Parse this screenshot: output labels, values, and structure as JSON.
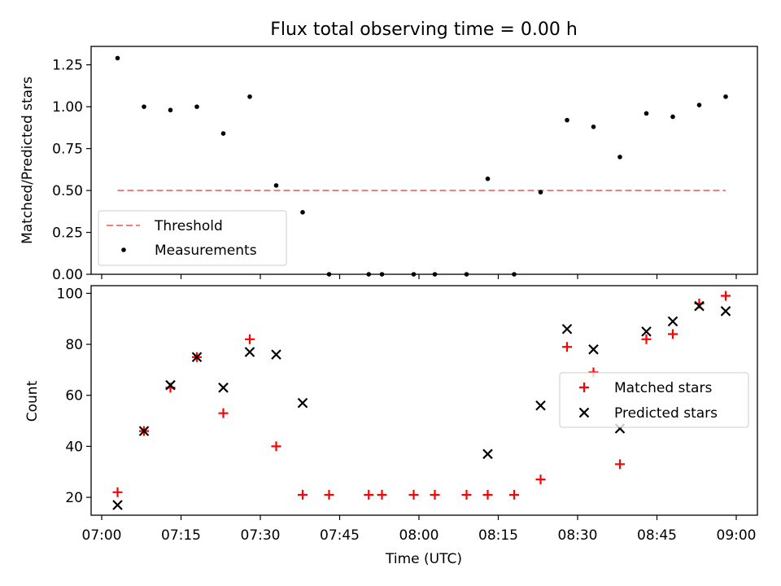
{
  "figure_title": "Flux total observing time = 0.00 h",
  "chart_data": [
    {
      "type": "scatter",
      "panel": "top",
      "title": "Flux total observing time = 0.00 h",
      "xlabel": "",
      "ylabel": "Matched/Predicted stars",
      "ylim": [
        0,
        1.36
      ],
      "yticks": [
        0,
        0.25,
        0.5,
        0.75,
        1.0,
        1.25
      ],
      "ytick_labels": [
        "0.00",
        "0.25",
        "0.50",
        "0.75",
        "1.00",
        "1.25"
      ],
      "legend_position": "lower-left",
      "threshold": {
        "name": "Threshold",
        "value": 0.5,
        "x_start": 3,
        "x_end": 118,
        "color": "#f08080"
      },
      "series": [
        {
          "name": "Measurements",
          "color": "#000000",
          "x": [
            3,
            8,
            13,
            18,
            23,
            28,
            33,
            38,
            43,
            50.5,
            53,
            59,
            63,
            69,
            73,
            78,
            83,
            88,
            93,
            98,
            103,
            108,
            113,
            118
          ],
          "y": [
            1.29,
            1.0,
            0.98,
            1.0,
            0.84,
            1.06,
            0.53,
            0.37,
            0.0,
            0.0,
            0.0,
            0.0,
            0.0,
            0.0,
            0.57,
            0.0,
            0.49,
            0.92,
            0.88,
            0.7,
            0.96,
            0.94,
            1.01,
            1.06
          ]
        }
      ]
    },
    {
      "type": "scatter",
      "panel": "bottom",
      "xlabel": "Time (UTC)",
      "ylabel": "Count",
      "ylim": [
        13,
        103
      ],
      "xlim": [
        -2,
        124
      ],
      "yticks": [
        20,
        40,
        60,
        80,
        100
      ],
      "xticks": [
        0,
        15,
        30,
        45,
        60,
        75,
        90,
        105,
        120
      ],
      "xtick_labels": [
        "07:00",
        "07:15",
        "07:30",
        "07:45",
        "08:00",
        "08:15",
        "08:30",
        "08:45",
        "09:00"
      ],
      "legend_position": "center-right",
      "series": [
        {
          "name": "Matched stars",
          "marker": "+",
          "color": "#ff0000",
          "x": [
            3,
            8,
            13,
            18,
            23,
            28,
            33,
            38,
            43,
            50.5,
            53,
            59,
            63,
            69,
            73,
            78,
            83,
            88,
            93,
            98,
            103,
            108,
            113,
            118
          ],
          "y": [
            22,
            46,
            63,
            75,
            53,
            82,
            40,
            21,
            21,
            21,
            21,
            21,
            21,
            21,
            21,
            21,
            27,
            79,
            69,
            33,
            82,
            84,
            96,
            99
          ]
        },
        {
          "name": "Predicted stars",
          "marker": "x",
          "color": "#000000",
          "x": [
            3,
            8,
            13,
            18,
            23,
            28,
            33,
            38,
            73,
            83,
            88,
            93,
            98,
            103,
            108,
            113,
            118
          ],
          "y": [
            17,
            46,
            64,
            75,
            63,
            77,
            76,
            57,
            37,
            56,
            86,
            78,
            47,
            85,
            89,
            95,
            93
          ]
        }
      ]
    }
  ]
}
